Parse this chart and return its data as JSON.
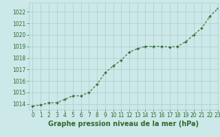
{
  "x": [
    0,
    1,
    2,
    3,
    4,
    5,
    6,
    7,
    8,
    9,
    10,
    11,
    12,
    13,
    14,
    15,
    16,
    17,
    18,
    19,
    20,
    21,
    22,
    23
  ],
  "y": [
    1013.8,
    1013.9,
    1014.1,
    1014.1,
    1014.4,
    1014.7,
    1014.7,
    1015.0,
    1015.7,
    1016.7,
    1017.3,
    1017.8,
    1018.5,
    1018.8,
    1019.0,
    1019.0,
    1019.0,
    1018.95,
    1019.0,
    1019.4,
    1020.0,
    1020.6,
    1021.6,
    1022.3
  ],
  "line_color": "#2d6a2d",
  "marker": "+",
  "bg_color": "#cce8e8",
  "grid_color": "#aacccc",
  "xlabel": "Graphe pression niveau de la mer (hPa)",
  "xlabel_color": "#2d6a2d",
  "tick_color": "#2d6a2d",
  "ylim_min": 1013.5,
  "ylim_max": 1022.8,
  "xlim_min": -0.5,
  "xlim_max": 23,
  "yticks": [
    1014,
    1015,
    1016,
    1017,
    1018,
    1019,
    1020,
    1021,
    1022
  ],
  "xticks": [
    0,
    1,
    2,
    3,
    4,
    5,
    6,
    7,
    8,
    9,
    10,
    11,
    12,
    13,
    14,
    15,
    16,
    17,
    18,
    19,
    20,
    21,
    22,
    23
  ],
  "tick_fontsize": 5.5,
  "xlabel_fontsize": 7.0,
  "linewidth": 0.8,
  "markersize": 3.5,
  "marker_thickness": 1.0
}
